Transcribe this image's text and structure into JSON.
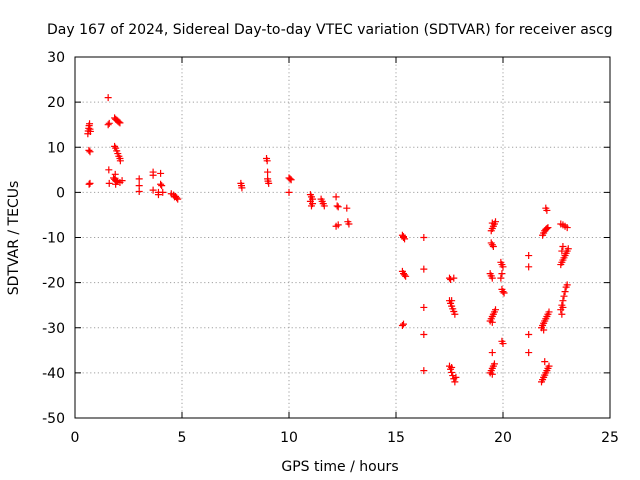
{
  "chart_data": {
    "type": "scatter",
    "title": "Day 167 of 2024, Sidereal Day-to-day VTEC variation (SDTVAR) for receiver ascg",
    "xlabel": "GPS time / hours",
    "ylabel": "SDTVAR / TECUs",
    "xlim": [
      0,
      25
    ],
    "ylim": [
      -50,
      30
    ],
    "xticks": [
      0,
      5,
      10,
      15,
      20,
      25
    ],
    "yticks": [
      -50,
      -40,
      -30,
      -20,
      -10,
      0,
      10,
      20,
      30
    ],
    "xtick_labels": [
      "0",
      "5",
      "10",
      "15",
      "20",
      "25"
    ],
    "ytick_labels": [
      "-50",
      "-40",
      "-30",
      "-20",
      "-10",
      "0",
      "10",
      "20",
      "30"
    ],
    "grid": true,
    "marker": "plus",
    "color": "#ff0000",
    "series": [
      {
        "name": "SDTVAR",
        "points": [
          [
            0.6,
            13.0
          ],
          [
            0.62,
            13.6
          ],
          [
            0.64,
            14.2
          ],
          [
            0.66,
            14.8
          ],
          [
            0.68,
            15.2
          ],
          [
            0.7,
            14.0
          ],
          [
            0.72,
            13.5
          ],
          [
            0.7,
            9.0
          ],
          [
            0.65,
            9.3
          ],
          [
            0.7,
            2.0
          ],
          [
            0.66,
            1.8
          ],
          [
            1.55,
            21.0
          ],
          [
            1.55,
            15.0
          ],
          [
            1.6,
            15.3
          ],
          [
            1.58,
            5.0
          ],
          [
            1.6,
            2.0
          ],
          [
            1.85,
            16.5
          ],
          [
            1.9,
            16.2
          ],
          [
            1.95,
            16.0
          ],
          [
            2.0,
            15.8
          ],
          [
            2.05,
            15.6
          ],
          [
            2.1,
            15.4
          ],
          [
            1.85,
            10.2
          ],
          [
            1.9,
            9.8
          ],
          [
            1.95,
            9.2
          ],
          [
            2.0,
            8.6
          ],
          [
            2.05,
            8.0
          ],
          [
            2.1,
            7.5
          ],
          [
            2.12,
            7.0
          ],
          [
            1.8,
            3.2
          ],
          [
            1.85,
            2.9
          ],
          [
            1.9,
            2.6
          ],
          [
            1.95,
            2.4
          ],
          [
            2.0,
            2.5
          ],
          [
            2.1,
            2.2
          ],
          [
            2.2,
            2.6
          ],
          [
            1.88,
            4.0
          ],
          [
            1.9,
            1.8
          ],
          [
            3.0,
            3.0
          ],
          [
            3.0,
            1.5
          ],
          [
            3.0,
            0.2
          ],
          [
            3.65,
            4.5
          ],
          [
            3.65,
            3.8
          ],
          [
            3.65,
            0.5
          ],
          [
            3.9,
            0.0
          ],
          [
            3.9,
            -0.5
          ],
          [
            4.0,
            4.2
          ],
          [
            4.0,
            1.8
          ],
          [
            4.05,
            1.5
          ],
          [
            4.1,
            0.0
          ],
          [
            4.5,
            -0.3
          ],
          [
            4.6,
            -0.6
          ],
          [
            4.7,
            -0.9
          ],
          [
            4.75,
            -1.2
          ],
          [
            4.8,
            -1.5
          ],
          [
            4.65,
            -1.0
          ],
          [
            7.75,
            2.0
          ],
          [
            7.78,
            1.5
          ],
          [
            7.8,
            1.0
          ],
          [
            8.95,
            7.5
          ],
          [
            8.98,
            7.0
          ],
          [
            9.0,
            4.5
          ],
          [
            9.0,
            3.0
          ],
          [
            9.02,
            2.5
          ],
          [
            9.05,
            2.0
          ],
          [
            10.0,
            3.2
          ],
          [
            10.05,
            3.0
          ],
          [
            10.1,
            2.8
          ],
          [
            10.0,
            0.0
          ],
          [
            11.0,
            -0.5
          ],
          [
            11.05,
            -1.0
          ],
          [
            11.1,
            -1.5
          ],
          [
            11.0,
            -2.0
          ],
          [
            11.1,
            -2.5
          ],
          [
            11.05,
            -3.0
          ],
          [
            11.5,
            -1.5
          ],
          [
            11.55,
            -2.0
          ],
          [
            11.6,
            -2.5
          ],
          [
            11.65,
            -3.0
          ],
          [
            12.2,
            -1.0
          ],
          [
            12.25,
            -3.0
          ],
          [
            12.3,
            -3.2
          ],
          [
            12.2,
            -7.5
          ],
          [
            12.3,
            -7.2
          ],
          [
            12.7,
            -3.5
          ],
          [
            12.75,
            -6.5
          ],
          [
            12.8,
            -7.0
          ],
          [
            15.3,
            -9.5
          ],
          [
            15.35,
            -10.0
          ],
          [
            15.4,
            -10.3
          ],
          [
            15.35,
            -9.8
          ],
          [
            15.3,
            -17.5
          ],
          [
            15.35,
            -18.0
          ],
          [
            15.4,
            -18.3
          ],
          [
            15.45,
            -18.6
          ],
          [
            15.3,
            -29.5
          ],
          [
            15.35,
            -29.2
          ],
          [
            16.3,
            -10.0
          ],
          [
            16.3,
            -17.0
          ],
          [
            16.3,
            -25.5
          ],
          [
            16.3,
            -31.5
          ],
          [
            16.3,
            -39.5
          ],
          [
            17.5,
            -19.0
          ],
          [
            17.55,
            -19.3
          ],
          [
            17.7,
            -19.0
          ],
          [
            17.5,
            -24.0
          ],
          [
            17.55,
            -24.6
          ],
          [
            17.6,
            -25.2
          ],
          [
            17.65,
            -25.8
          ],
          [
            17.7,
            -26.4
          ],
          [
            17.75,
            -27.0
          ],
          [
            17.6,
            -24.0
          ],
          [
            17.5,
            -38.5
          ],
          [
            17.55,
            -39.2
          ],
          [
            17.6,
            -39.9
          ],
          [
            17.65,
            -40.6
          ],
          [
            17.7,
            -41.3
          ],
          [
            17.75,
            -42.0
          ],
          [
            17.8,
            -41.0
          ],
          [
            17.6,
            -38.8
          ],
          [
            19.45,
            -8.5
          ],
          [
            19.5,
            -8.0
          ],
          [
            19.55,
            -7.5
          ],
          [
            19.6,
            -7.0
          ],
          [
            19.65,
            -6.5
          ],
          [
            19.5,
            -6.8
          ],
          [
            19.45,
            -11.2
          ],
          [
            19.5,
            -11.6
          ],
          [
            19.55,
            -12.0
          ],
          [
            19.4,
            -18.0
          ],
          [
            19.45,
            -18.5
          ],
          [
            19.5,
            -19.0
          ],
          [
            19.4,
            -28.5
          ],
          [
            19.45,
            -28.0
          ],
          [
            19.5,
            -27.5
          ],
          [
            19.55,
            -27.0
          ],
          [
            19.6,
            -26.5
          ],
          [
            19.65,
            -26.0
          ],
          [
            19.5,
            -28.8
          ],
          [
            19.4,
            -40.0
          ],
          [
            19.45,
            -39.5
          ],
          [
            19.5,
            -39.0
          ],
          [
            19.55,
            -38.5
          ],
          [
            19.6,
            -38.0
          ],
          [
            19.5,
            -40.3
          ],
          [
            19.5,
            -35.5
          ],
          [
            19.9,
            -15.5
          ],
          [
            19.95,
            -16.0
          ],
          [
            20.0,
            -16.5
          ],
          [
            19.9,
            -19.0
          ],
          [
            19.95,
            -18.0
          ],
          [
            19.95,
            -21.5
          ],
          [
            20.0,
            -22.0
          ],
          [
            20.05,
            -22.3
          ],
          [
            19.95,
            -33.0
          ],
          [
            20.0,
            -33.5
          ],
          [
            21.2,
            -14.0
          ],
          [
            21.2,
            -16.5
          ],
          [
            21.2,
            -31.5
          ],
          [
            21.2,
            -35.5
          ],
          [
            21.85,
            -9.5
          ],
          [
            21.9,
            -9.0
          ],
          [
            21.95,
            -8.5
          ],
          [
            22.0,
            -8.2
          ],
          [
            22.05,
            -8.0
          ],
          [
            22.1,
            -7.8
          ],
          [
            22.0,
            -3.5
          ],
          [
            22.05,
            -4.0
          ],
          [
            21.8,
            -30.0
          ],
          [
            21.85,
            -29.5
          ],
          [
            21.9,
            -29.0
          ],
          [
            21.95,
            -28.5
          ],
          [
            22.0,
            -28.0
          ],
          [
            22.05,
            -27.5
          ],
          [
            22.1,
            -27.0
          ],
          [
            22.15,
            -26.5
          ],
          [
            21.9,
            -30.5
          ],
          [
            21.8,
            -42.0
          ],
          [
            21.85,
            -41.5
          ],
          [
            21.9,
            -41.0
          ],
          [
            21.95,
            -40.5
          ],
          [
            22.0,
            -40.0
          ],
          [
            22.05,
            -39.5
          ],
          [
            22.1,
            -39.0
          ],
          [
            22.15,
            -38.5
          ],
          [
            21.95,
            -37.5
          ],
          [
            22.7,
            -16.0
          ],
          [
            22.75,
            -15.5
          ],
          [
            22.8,
            -15.0
          ],
          [
            22.85,
            -14.5
          ],
          [
            22.9,
            -14.0
          ],
          [
            22.95,
            -13.5
          ],
          [
            23.0,
            -13.0
          ],
          [
            23.05,
            -12.5
          ],
          [
            22.75,
            -13.0
          ],
          [
            22.8,
            -12.0
          ],
          [
            22.7,
            -7.0
          ],
          [
            22.8,
            -7.2
          ],
          [
            22.9,
            -7.5
          ],
          [
            23.0,
            -7.8
          ],
          [
            22.7,
            -26.0
          ],
          [
            22.75,
            -25.0
          ],
          [
            22.8,
            -24.0
          ],
          [
            22.85,
            -23.0
          ],
          [
            22.9,
            -22.0
          ],
          [
            22.95,
            -21.0
          ],
          [
            23.0,
            -20.5
          ],
          [
            22.75,
            -27.0
          ],
          [
            22.8,
            -25.5
          ]
        ]
      }
    ]
  }
}
